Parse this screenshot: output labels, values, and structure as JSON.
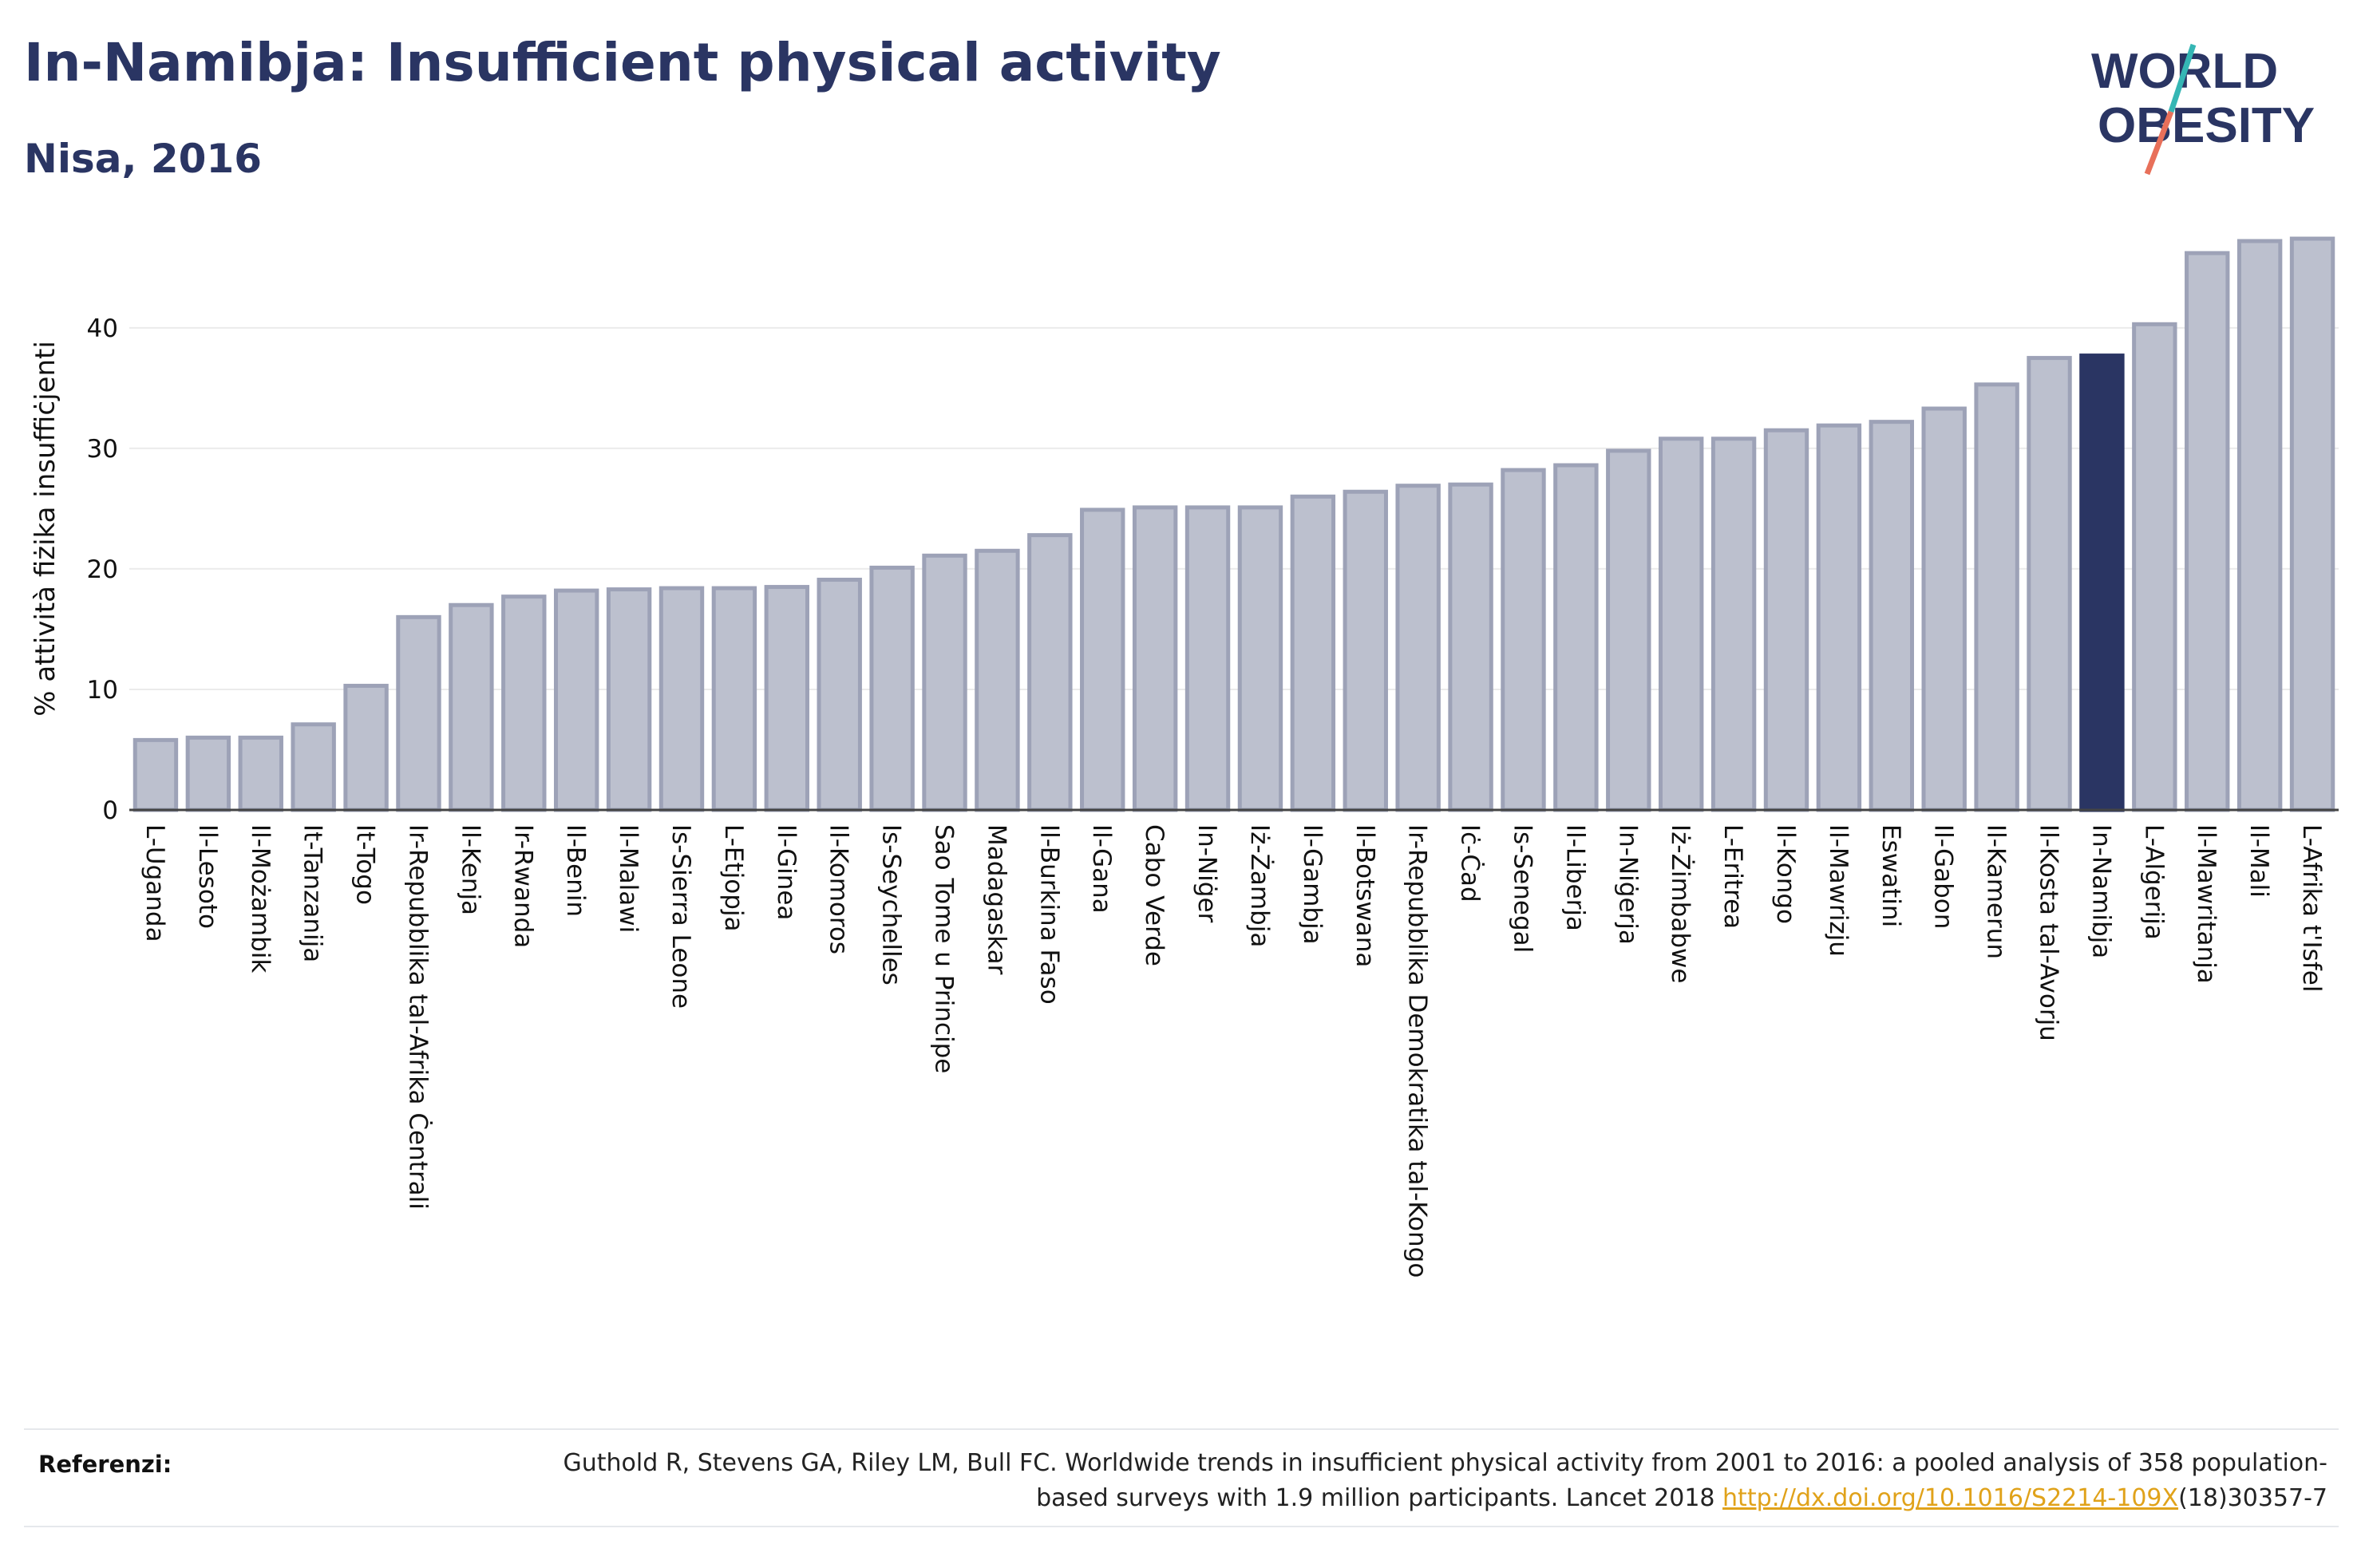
{
  "title": "In-Namibja: Insufficient physical activity",
  "subtitle": "Nisa, 2016",
  "logo": {
    "line1": "WORLD",
    "line2": "OBESITY"
  },
  "colors": {
    "bar": "#bcc0ce",
    "bar_border": "#9da2b7",
    "highlight": "#2a3563",
    "text": "#2a3563",
    "grid": "#ebebeb",
    "link": "#e0a21a",
    "logo_slash_teal": "#35b6b4",
    "logo_slash_coral": "#e8705a"
  },
  "chart_data": {
    "type": "bar",
    "title": "In-Namibja: Insufficient physical activity",
    "subtitle": "Nisa, 2016",
    "xlabel": "",
    "ylabel": "% attività fiżika insuffiċjenti",
    "ylim": [
      0,
      48
    ],
    "yticks": [
      0,
      10,
      20,
      30,
      40
    ],
    "grid": true,
    "highlight": "In-Namibja",
    "categories": [
      "L-Uganda",
      "Il-Lesoto",
      "Il-Możambik",
      "It-Tanzanija",
      "It-Togo",
      "Ir-Repubblika tal-Afrika Ċentrali",
      "Il-Kenja",
      "Ir-Rwanda",
      "Il-Benin",
      "Il-Malawi",
      "Is-Sierra Leone",
      "L-Etjopja",
      "Il-Ginea",
      "Il-Komoros",
      "Is-Seychelles",
      "Sao Tome u Principe",
      "Madagaskar",
      "Il-Burkina Faso",
      "Il-Gana",
      "Cabo Verde",
      "In-Niġer",
      "Iż-Żambja",
      "Il-Gambja",
      "Il-Botswana",
      "Ir-Repubblika Demokratika tal-Kongo",
      "Iċ-Ċad",
      "Is-Senegal",
      "Il-Liberja",
      "In-Niġerja",
      "Iż-Żimbabwe",
      "L-Eritrea",
      "Il-Kongo",
      "Il-Mawrizju",
      "Eswatini",
      "Il-Gabon",
      "Il-Kamerun",
      "Il-Kosta tal-Avorju",
      "In-Namibja",
      "L-Alġerija",
      "Il-Mawritanja",
      "Il-Mali",
      "L-Afrika t'Isfel"
    ],
    "values": [
      5.8,
      6.0,
      6.0,
      7.1,
      10.3,
      16.0,
      17.0,
      17.7,
      18.2,
      18.3,
      18.4,
      18.4,
      18.5,
      19.1,
      20.1,
      21.1,
      21.5,
      22.8,
      24.9,
      25.1,
      25.1,
      25.1,
      26.0,
      26.4,
      26.9,
      27.0,
      28.2,
      28.6,
      29.8,
      30.8,
      30.8,
      31.5,
      31.9,
      32.2,
      33.3,
      35.3,
      37.5,
      37.7,
      40.3,
      46.2,
      47.2,
      47.4
    ]
  },
  "references": {
    "label": "Referenzi:",
    "text_before_link": "Guthold R, Stevens GA, Riley LM, Bull FC. Worldwide trends in insufficient physical activity from 2001 to 2016: a pooled analysis of 358 population-based surveys with 1.9 million participants. Lancet 2018 ",
    "link_text": "http://dx.doi.org/10.1016/S2214-109X",
    "text_after_link": "(18)30357-7"
  }
}
